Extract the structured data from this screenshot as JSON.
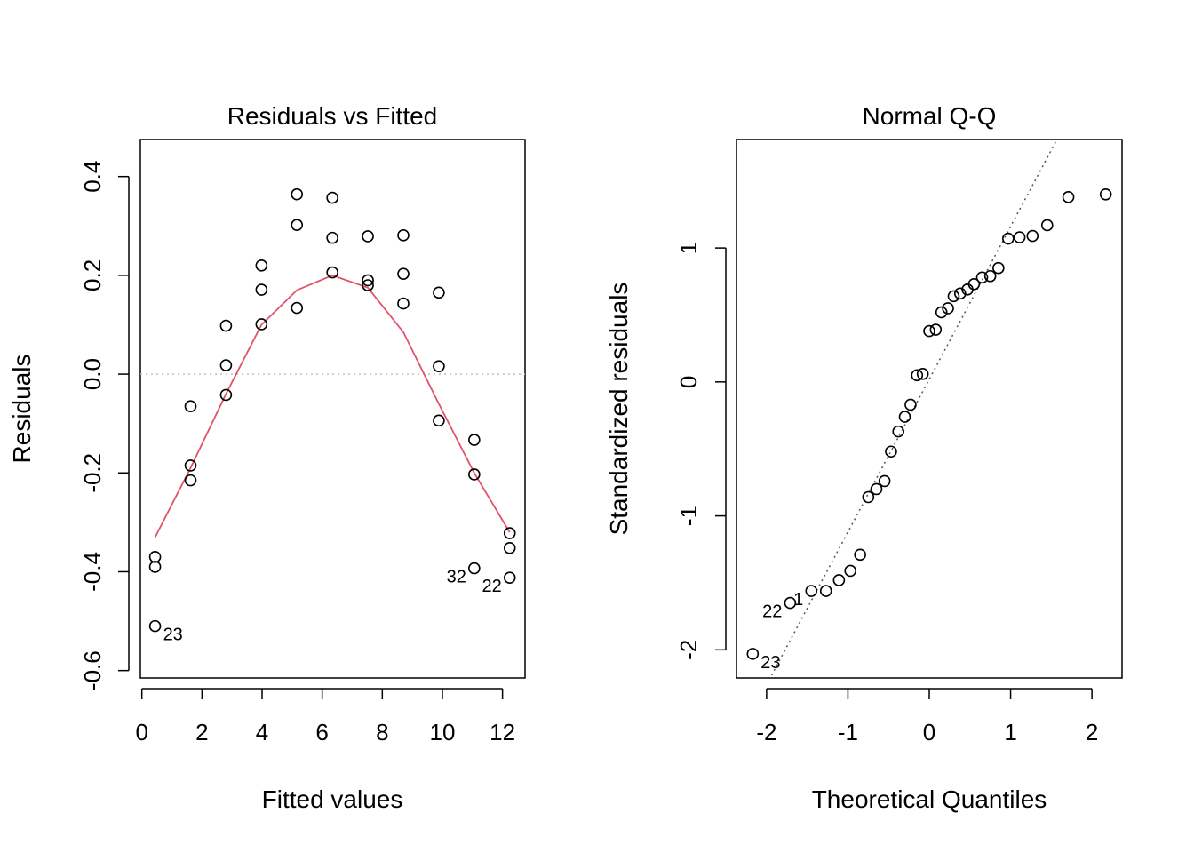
{
  "chart_data": [
    {
      "type": "scatter",
      "title": "Residuals vs Fitted",
      "xlabel": "Fitted values",
      "ylabel": "Residuals",
      "xlim": [
        -0.05,
        12.75
      ],
      "ylim": [
        -0.615,
        0.475
      ],
      "xticks": [
        0,
        2,
        4,
        6,
        8,
        10,
        12
      ],
      "xtick_labels": [
        "0",
        "2",
        "4",
        "6",
        "8",
        "10",
        "12"
      ],
      "yticks": [
        -0.6,
        -0.4,
        -0.2,
        0.0,
        0.2,
        0.4
      ],
      "ytick_labels": [
        "-0.6",
        "-0.4",
        "-0.2",
        "0.0",
        "0.2",
        "0.4"
      ],
      "reference_line": {
        "y": 0,
        "color": "#bebebe",
        "style": "dotted"
      },
      "points": [
        {
          "x": 0.44,
          "y": -0.37
        },
        {
          "x": 0.44,
          "y": -0.39
        },
        {
          "x": 0.44,
          "y": -0.51
        },
        {
          "x": 1.62,
          "y": -0.065
        },
        {
          "x": 1.62,
          "y": -0.185
        },
        {
          "x": 1.62,
          "y": -0.215
        },
        {
          "x": 2.8,
          "y": 0.098
        },
        {
          "x": 2.8,
          "y": 0.018
        },
        {
          "x": 2.8,
          "y": -0.042
        },
        {
          "x": 3.98,
          "y": 0.22
        },
        {
          "x": 3.98,
          "y": 0.171
        },
        {
          "x": 3.98,
          "y": 0.101
        },
        {
          "x": 5.16,
          "y": 0.364
        },
        {
          "x": 5.16,
          "y": 0.302
        },
        {
          "x": 5.16,
          "y": 0.134
        },
        {
          "x": 6.34,
          "y": 0.357
        },
        {
          "x": 6.34,
          "y": 0.276
        },
        {
          "x": 6.34,
          "y": 0.206
        },
        {
          "x": 7.52,
          "y": 0.279
        },
        {
          "x": 7.52,
          "y": 0.19
        },
        {
          "x": 7.52,
          "y": 0.18
        },
        {
          "x": 8.7,
          "y": 0.281
        },
        {
          "x": 8.7,
          "y": 0.203
        },
        {
          "x": 8.7,
          "y": 0.143
        },
        {
          "x": 9.88,
          "y": 0.165
        },
        {
          "x": 9.88,
          "y": 0.016
        },
        {
          "x": 9.88,
          "y": -0.094
        },
        {
          "x": 11.06,
          "y": -0.133
        },
        {
          "x": 11.06,
          "y": -0.203
        },
        {
          "x": 11.06,
          "y": -0.393
        },
        {
          "x": 12.24,
          "y": -0.322
        },
        {
          "x": 12.24,
          "y": -0.352
        },
        {
          "x": 12.24,
          "y": -0.412
        }
      ],
      "labeled_points": [
        {
          "label": "23",
          "x": 0.44,
          "y": -0.51,
          "side": "right"
        },
        {
          "label": "32",
          "x": 11.06,
          "y": -0.393,
          "side": "left"
        },
        {
          "label": "22",
          "x": 12.24,
          "y": -0.412,
          "side": "left"
        }
      ],
      "smoother": {
        "color": "#df536b",
        "x": [
          0.44,
          1.62,
          2.8,
          3.98,
          5.16,
          6.34,
          7.52,
          8.7,
          9.88,
          11.06,
          12.24
        ],
        "y": [
          -0.33,
          -0.19,
          -0.04,
          0.1,
          0.17,
          0.2,
          0.175,
          0.085,
          -0.06,
          -0.2,
          -0.32
        ]
      }
    },
    {
      "type": "scatter",
      "title": "Normal Q-Q",
      "xlabel": "Theoretical Quantiles",
      "ylabel": "Standardized residuals",
      "xlim": [
        -2.37,
        2.37
      ],
      "ylim": [
        -2.21,
        1.81
      ],
      "xticks": [
        -2,
        -1,
        0,
        1,
        2
      ],
      "xtick_labels": [
        "-2",
        "-1",
        "0",
        "1",
        "2"
      ],
      "yticks": [
        -2,
        -1,
        0,
        1
      ],
      "ytick_labels": [
        "-2",
        "-1",
        "0",
        "1"
      ],
      "reference_line": {
        "color": "#555555",
        "style": "dotted",
        "intercept": 0.02,
        "slope": 1.14
      },
      "points": [
        {
          "x": -2.17,
          "y": -2.03
        },
        {
          "x": -1.71,
          "y": -1.65
        },
        {
          "x": -1.45,
          "y": -1.56
        },
        {
          "x": -1.27,
          "y": -1.56
        },
        {
          "x": -1.11,
          "y": -1.48
        },
        {
          "x": -0.97,
          "y": -1.41
        },
        {
          "x": -0.85,
          "y": -1.29
        },
        {
          "x": -0.75,
          "y": -0.86
        },
        {
          "x": -0.65,
          "y": -0.8
        },
        {
          "x": -0.55,
          "y": -0.74
        },
        {
          "x": -0.47,
          "y": -0.52
        },
        {
          "x": -0.38,
          "y": -0.37
        },
        {
          "x": -0.3,
          "y": -0.26
        },
        {
          "x": -0.23,
          "y": -0.17
        },
        {
          "x": -0.15,
          "y": 0.05
        },
        {
          "x": -0.08,
          "y": 0.06
        },
        {
          "x": 0.0,
          "y": 0.38
        },
        {
          "x": 0.08,
          "y": 0.39
        },
        {
          "x": 0.15,
          "y": 0.52
        },
        {
          "x": 0.23,
          "y": 0.55
        },
        {
          "x": 0.3,
          "y": 0.64
        },
        {
          "x": 0.38,
          "y": 0.66
        },
        {
          "x": 0.47,
          "y": 0.69
        },
        {
          "x": 0.55,
          "y": 0.73
        },
        {
          "x": 0.65,
          "y": 0.78
        },
        {
          "x": 0.75,
          "y": 0.79
        },
        {
          "x": 0.85,
          "y": 0.85
        },
        {
          "x": 0.97,
          "y": 1.07
        },
        {
          "x": 1.11,
          "y": 1.08
        },
        {
          "x": 1.27,
          "y": 1.09
        },
        {
          "x": 1.45,
          "y": 1.17
        },
        {
          "x": 1.71,
          "y": 1.38
        },
        {
          "x": 2.17,
          "y": 1.4
        }
      ],
      "labeled_points": [
        {
          "label": "23",
          "x": -2.17,
          "y": -2.03,
          "side": "right"
        },
        {
          "label": "22",
          "x": -1.71,
          "y": -1.65,
          "side": "left"
        },
        {
          "label": "1",
          "x": -1.45,
          "y": -1.56,
          "side": "left"
        }
      ]
    }
  ]
}
